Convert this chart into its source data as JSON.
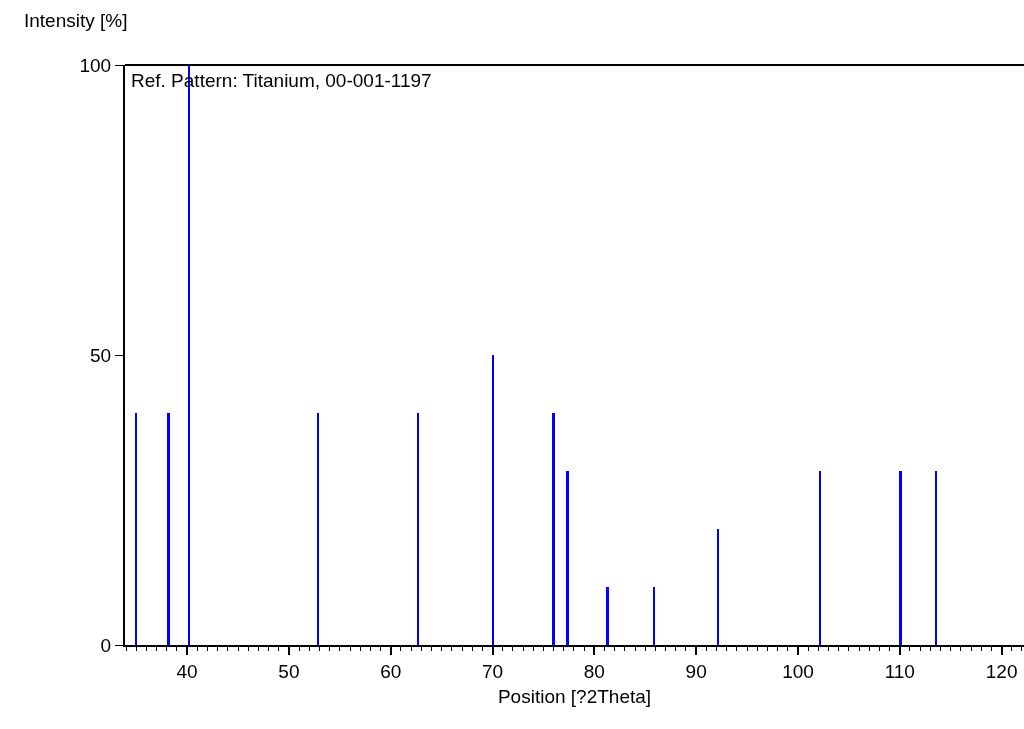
{
  "chart_data": {
    "type": "bar",
    "xlabel": "Position [?2Theta]",
    "ylabel": "Intensity [%]",
    "annotations": [
      "Ref. Pattern: Titanium, 00-001-1197"
    ],
    "x": [
      35.0,
      38.2,
      40.2,
      52.9,
      62.7,
      70.1,
      76.0,
      77.4,
      81.3,
      85.9,
      92.2,
      102.2,
      110.1,
      113.6
    ],
    "values": [
      40,
      40,
      100,
      40,
      40,
      50,
      40,
      30,
      10,
      10,
      20,
      30,
      30,
      30
    ],
    "color": "#0000ff",
    "xlim": [
      33.9,
      122.2
    ],
    "xticks": [
      {
        "value": 34,
        "label": null
      },
      {
        "value": 35,
        "label": null
      },
      {
        "value": 36,
        "label": null
      },
      {
        "value": 37,
        "label": null
      },
      {
        "value": 38,
        "label": null
      },
      {
        "value": 39,
        "label": null
      },
      40,
      {
        "value": 41,
        "label": null
      },
      {
        "value": 42,
        "label": null
      },
      {
        "value": 43,
        "label": null
      },
      {
        "value": 44,
        "label": null
      },
      {
        "value": 45,
        "label": null
      },
      {
        "value": 46,
        "label": null
      },
      {
        "value": 47,
        "label": null
      },
      {
        "value": 48,
        "label": null
      },
      {
        "value": 49,
        "label": null
      },
      50,
      {
        "value": 51,
        "label": null
      },
      {
        "value": 52,
        "label": null
      },
      {
        "value": 53,
        "label": null
      },
      {
        "value": 54,
        "label": null
      },
      {
        "value": 55,
        "label": null
      },
      {
        "value": 56,
        "label": null
      },
      {
        "value": 57,
        "label": null
      },
      {
        "value": 58,
        "label": null
      },
      {
        "value": 59,
        "label": null
      },
      60,
      {
        "value": 61,
        "label": null
      },
      {
        "value": 62,
        "label": null
      },
      {
        "value": 63,
        "label": null
      },
      {
        "value": 64,
        "label": null
      },
      {
        "value": 65,
        "label": null
      },
      {
        "value": 66,
        "label": null
      },
      {
        "value": 67,
        "label": null
      },
      {
        "value": 68,
        "label": null
      },
      {
        "value": 69,
        "label": null
      },
      70,
      {
        "value": 71,
        "label": null
      },
      {
        "value": 72,
        "label": null
      },
      {
        "value": 73,
        "label": null
      },
      {
        "value": 74,
        "label": null
      },
      {
        "value": 75,
        "label": null
      },
      {
        "value": 76,
        "label": null
      },
      {
        "value": 77,
        "label": null
      },
      {
        "value": 78,
        "label": null
      },
      {
        "value": 79,
        "label": null
      },
      80,
      {
        "value": 81,
        "label": null
      },
      {
        "value": 82,
        "label": null
      },
      {
        "value": 83,
        "label": null
      },
      {
        "value": 84,
        "label": null
      },
      {
        "value": 85,
        "label": null
      },
      {
        "value": 86,
        "label": null
      },
      {
        "value": 87,
        "label": null
      },
      {
        "value": 88,
        "label": null
      },
      {
        "value": 89,
        "label": null
      },
      90,
      {
        "value": 91,
        "label": null
      },
      {
        "value": 92,
        "label": null
      },
      {
        "value": 93,
        "label": null
      },
      {
        "value": 94,
        "label": null
      },
      {
        "value": 95,
        "label": null
      },
      {
        "value": 96,
        "label": null
      },
      {
        "value": 97,
        "label": null
      },
      {
        "value": 98,
        "label": null
      },
      {
        "value": 99,
        "label": null
      },
      100,
      {
        "value": 101,
        "label": null
      },
      {
        "value": 102,
        "label": null
      },
      {
        "value": 103,
        "label": null
      },
      {
        "value": 104,
        "label": null
      },
      {
        "value": 105,
        "label": null
      },
      {
        "value": 106,
        "label": null
      },
      {
        "value": 107,
        "label": null
      },
      {
        "value": 108,
        "label": null
      },
      {
        "value": 109,
        "label": null
      },
      110,
      {
        "value": 111,
        "label": null
      },
      {
        "value": 112,
        "label": null
      },
      {
        "value": 113,
        "label": null
      },
      {
        "value": 114,
        "label": null
      },
      {
        "value": 115,
        "label": null
      },
      {
        "value": 116,
        "label": null
      },
      {
        "value": 117,
        "label": null
      },
      {
        "value": 118,
        "label": null
      },
      {
        "value": 119,
        "label": null
      },
      120,
      {
        "value": 121,
        "label": null
      },
      {
        "value": 122,
        "label": null
      }
    ],
    "ylim": [
      0,
      100
    ],
    "yticks": [
      0,
      50,
      100
    ],
    "grid": false
  }
}
